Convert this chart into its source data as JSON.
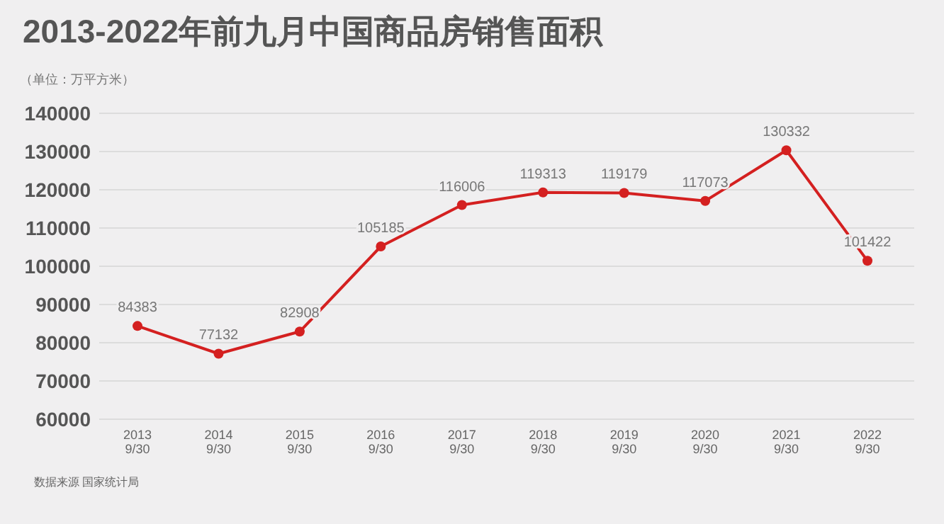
{
  "chart_data": {
    "type": "line",
    "title": "2013-2022年前九月中国商品房销售面积",
    "subtitle": "（单位：万平方米）",
    "categories": [
      "2013\n9/30",
      "2014\n9/30",
      "2015\n9/30",
      "2016\n9/30",
      "2017\n9/30",
      "2018\n9/30",
      "2019\n9/30",
      "2020\n9/30",
      "2021\n9/30",
      "2022\n9/30"
    ],
    "series": [
      {
        "color": "#d42020",
        "values": [
          84383,
          77132,
          82908,
          105185,
          116006,
          119313,
          119179,
          117073,
          130332,
          101422
        ]
      }
    ],
    "ylim": [
      60000,
      140000
    ],
    "yticks": [
      60000,
      70000,
      80000,
      90000,
      100000,
      110000,
      120000,
      130000,
      140000
    ],
    "grid": "y",
    "marker": "circle",
    "line_style": "solid",
    "data_labels": true,
    "annotations": [
      "数据来源 国家统计局"
    ]
  }
}
